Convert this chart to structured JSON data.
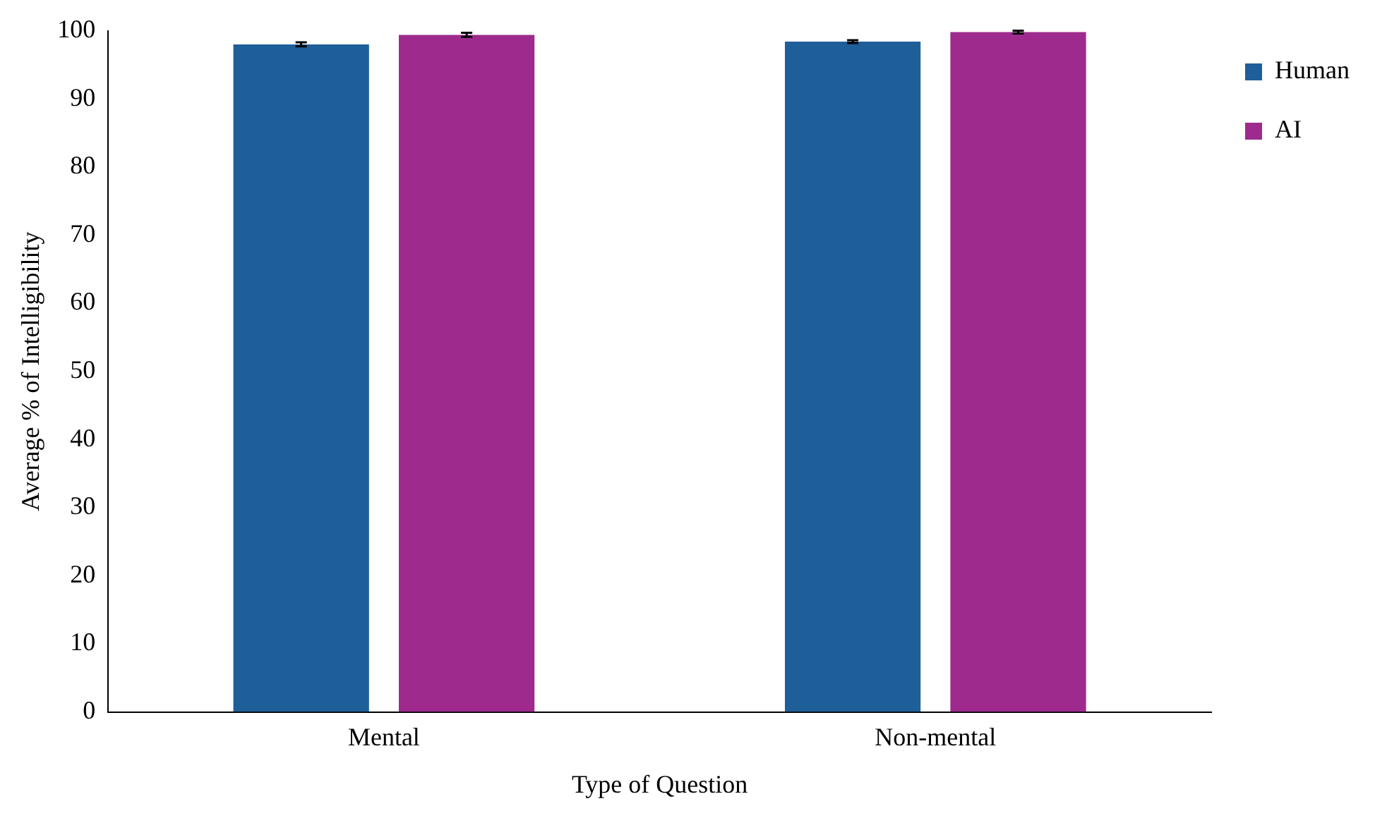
{
  "chart_data": {
    "type": "bar",
    "xlabel": "Type of Question",
    "ylabel": "Average % of Intelligibility",
    "categories": [
      "Mental",
      "Non-mental"
    ],
    "series": [
      {
        "name": "Human",
        "color": "#1f5f99",
        "values": [
          98.0,
          98.4
        ],
        "errors": [
          0.3,
          0.2
        ]
      },
      {
        "name": "AI",
        "color": "#9e2a8e",
        "values": [
          99.4,
          99.8
        ],
        "errors": [
          0.3,
          0.2
        ]
      }
    ],
    "ylim": [
      0,
      100
    ],
    "yticks": [
      0,
      10,
      20,
      30,
      40,
      50,
      60,
      70,
      80,
      90,
      100
    ],
    "grid": false,
    "legend": "top right"
  }
}
